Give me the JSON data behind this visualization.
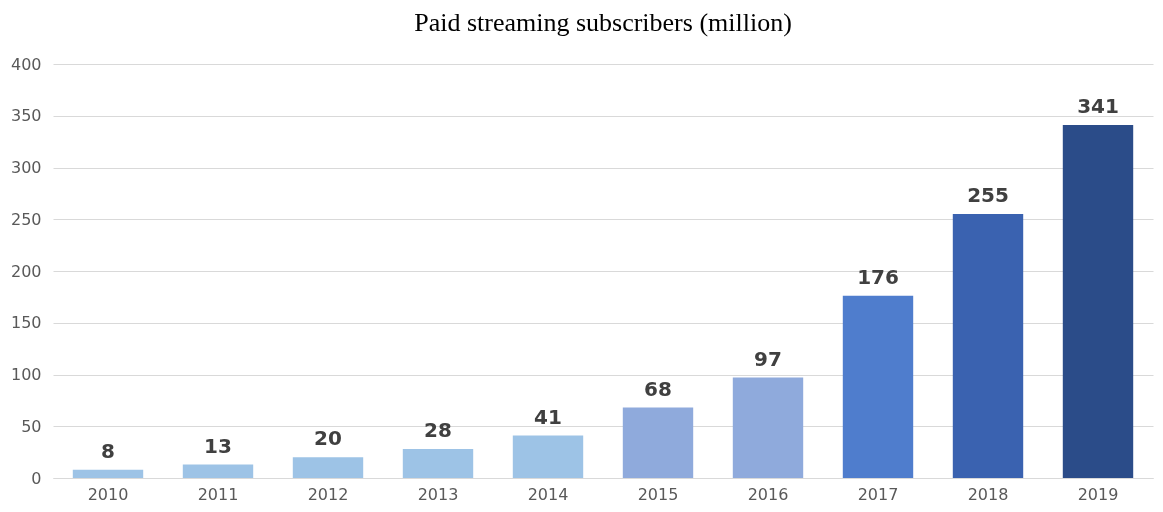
{
  "chart_data": {
    "type": "bar",
    "title": "Paid streaming subscribers (million)",
    "categories": [
      "2010",
      "2011",
      "2012",
      "2013",
      "2014",
      "2015",
      "2016",
      "2017",
      "2018",
      "2019"
    ],
    "values": [
      8,
      13,
      20,
      28,
      41,
      68,
      97,
      176,
      255,
      341
    ],
    "colors": [
      "#9dc3e6",
      "#9dc3e6",
      "#9dc3e6",
      "#9dc3e6",
      "#9dc3e6",
      "#8faadc",
      "#8faadc",
      "#4f7dcd",
      "#3a62b0",
      "#2b4c89"
    ],
    "ylim": [
      0,
      400
    ],
    "yticks": [
      0,
      50,
      100,
      150,
      200,
      250,
      300,
      350,
      400
    ],
    "grid": "y",
    "data_labels": true
  }
}
